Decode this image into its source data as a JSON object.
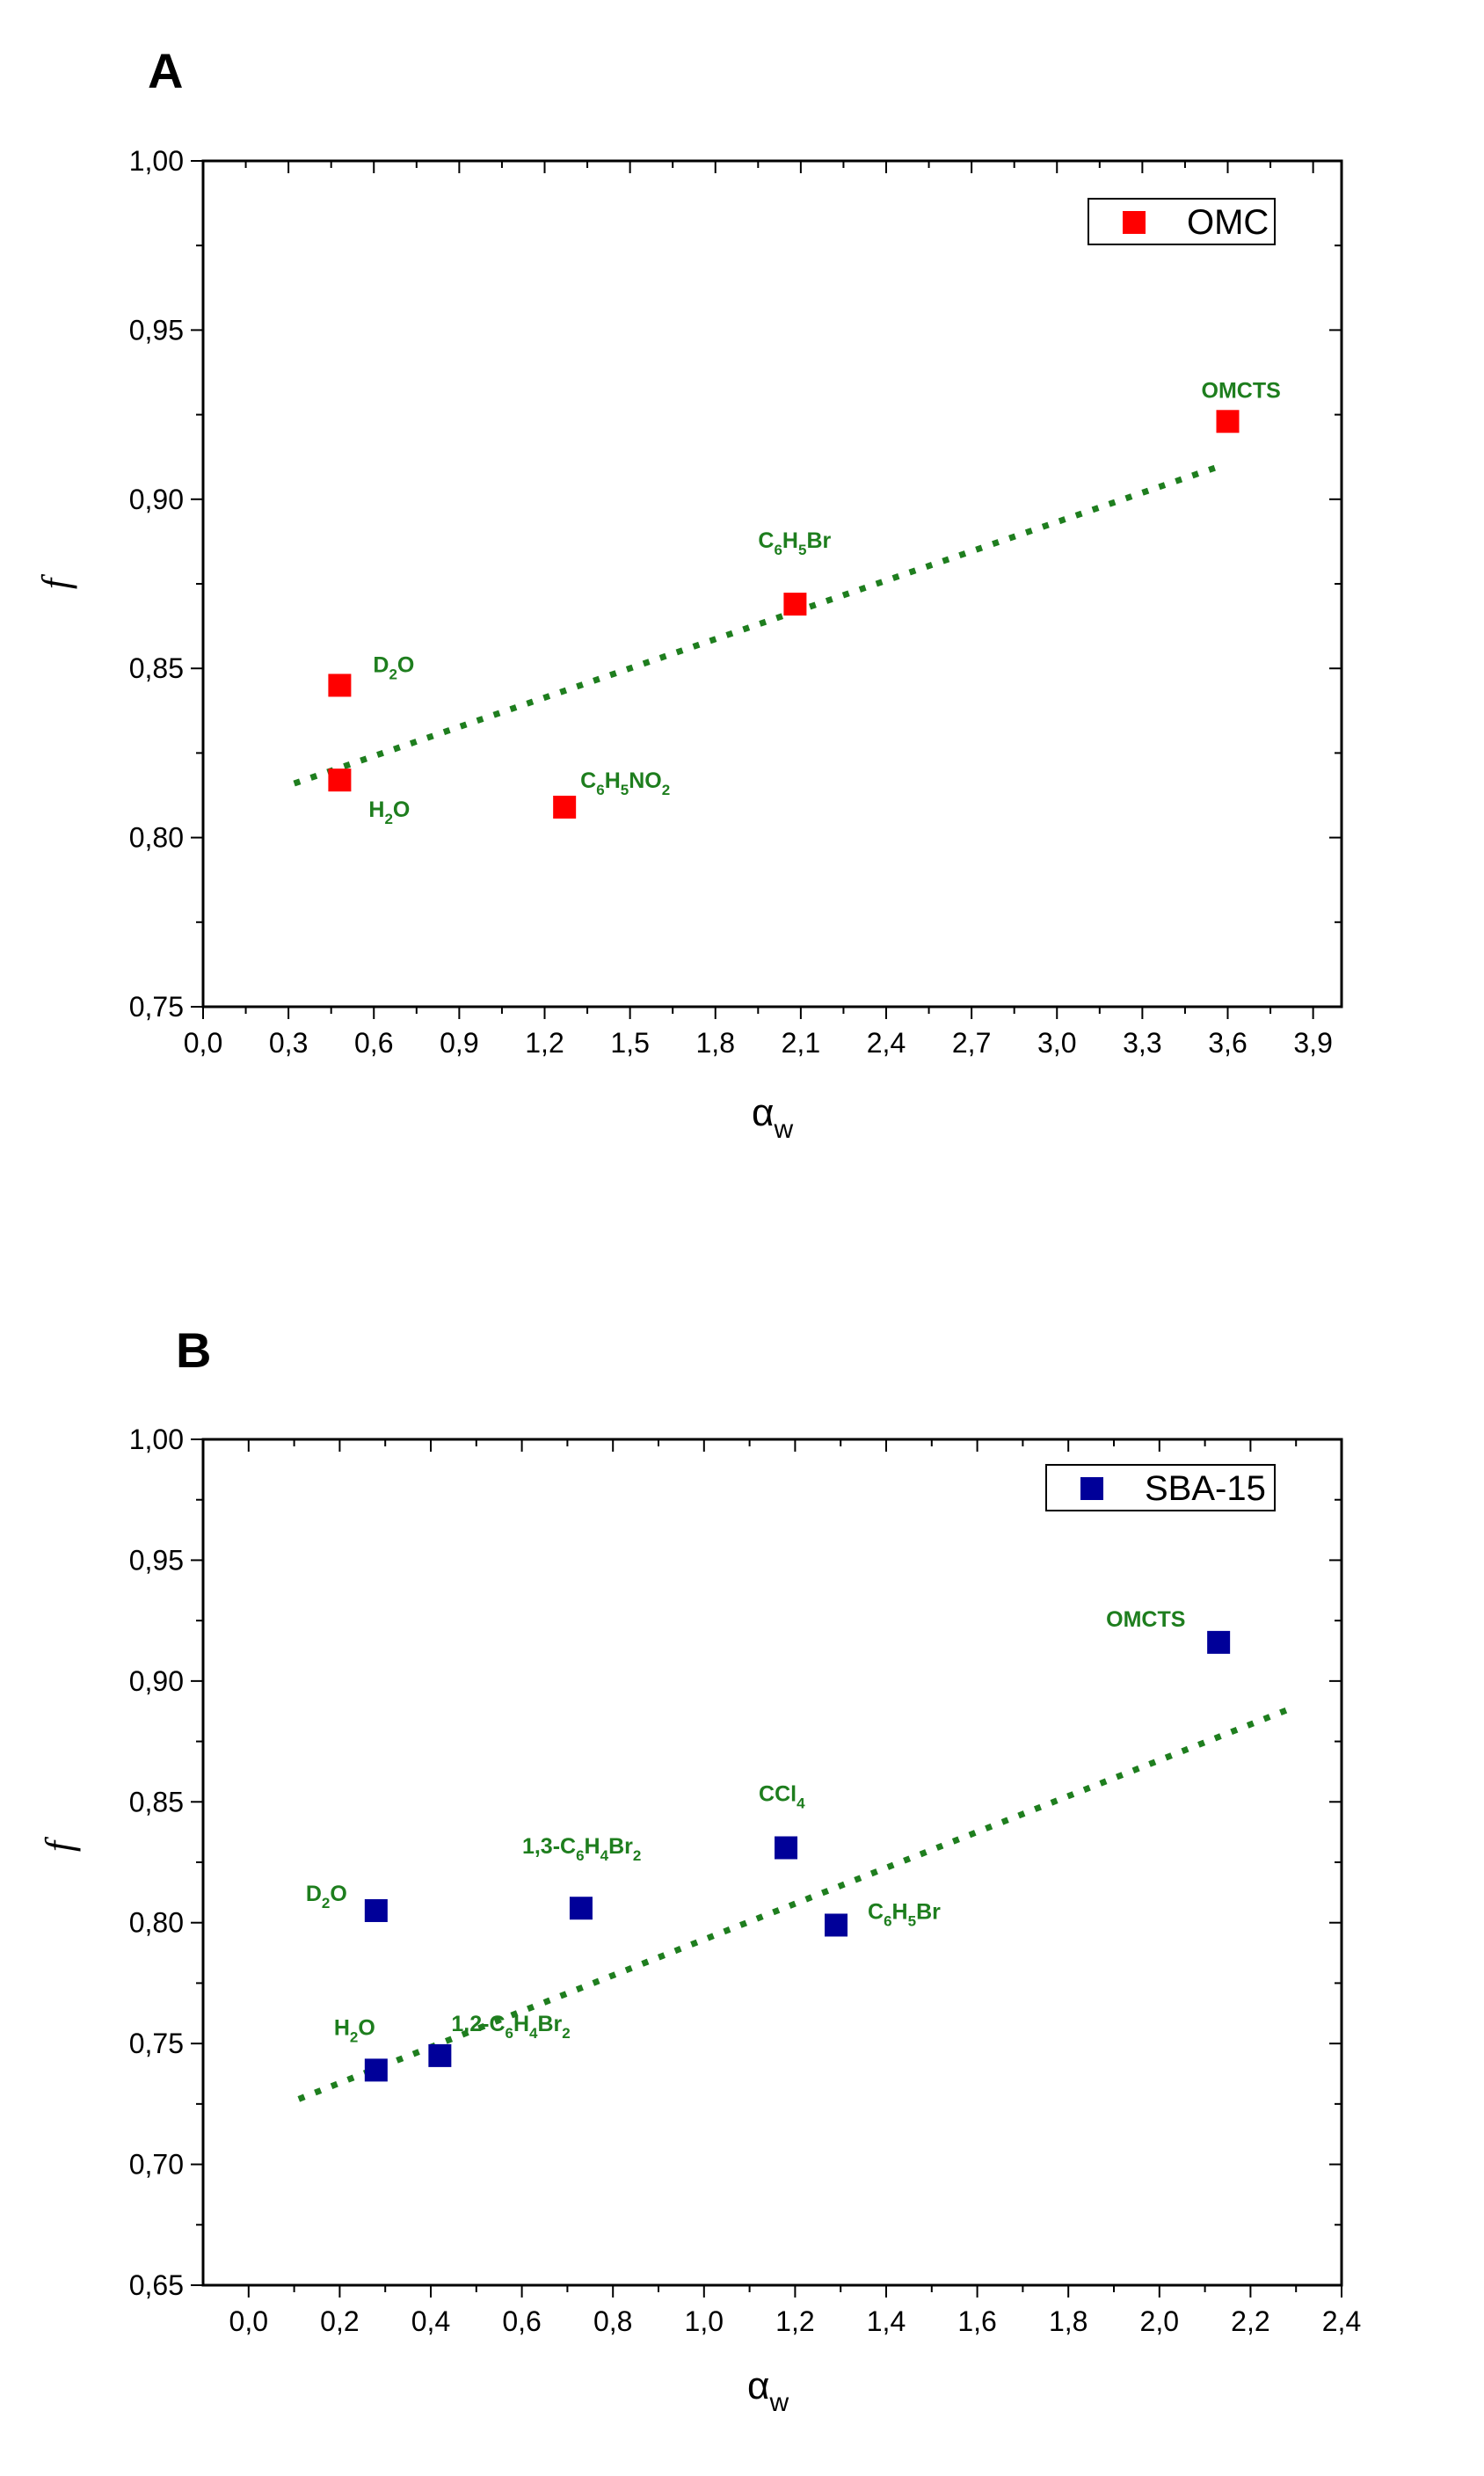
{
  "chart_data": [
    {
      "panel": "A",
      "type": "scatter",
      "xlabel": "α",
      "xlabel_sub": "w",
      "ylabel": "f",
      "xlim": [
        0.0,
        4.0
      ],
      "ylim": [
        0.75,
        1.0
      ],
      "xticks": [
        0.0,
        0.3,
        0.6,
        0.9,
        1.2,
        1.5,
        1.8,
        2.1,
        2.4,
        2.7,
        3.0,
        3.3,
        3.6,
        3.9
      ],
      "xtick_labels": [
        "0,0",
        "0,3",
        "0,6",
        "0,9",
        "1,2",
        "1,5",
        "1,8",
        "2,1",
        "2,4",
        "2,7",
        "3,0",
        "3,3",
        "3,6",
        "3,9"
      ],
      "yticks": [
        0.75,
        0.8,
        0.85,
        0.9,
        0.95,
        1.0
      ],
      "ytick_labels": [
        "0,75",
        "0,80",
        "0,85",
        "0,90",
        "0,95",
        "1,00"
      ],
      "series": [
        {
          "name": "OMC",
          "color": "#ff0000",
          "marker": "square",
          "points": [
            {
              "x": 0.48,
              "y": 0.845,
              "label": [
                "D",
                "2",
                "O"
              ]
            },
            {
              "x": 0.48,
              "y": 0.817,
              "label": [
                "H",
                "2",
                "O"
              ]
            },
            {
              "x": 1.27,
              "y": 0.809,
              "label": [
                "C",
                "6",
                "H",
                "5",
                "NO",
                "2"
              ]
            },
            {
              "x": 2.08,
              "y": 0.869,
              "label": [
                "C",
                "6",
                "H",
                "5",
                "Br"
              ]
            },
            {
              "x": 3.6,
              "y": 0.923,
              "label": [
                "OMCTS"
              ]
            }
          ]
        }
      ],
      "fit_line": {
        "x": [
          0.32,
          3.58
        ],
        "y": [
          0.816,
          0.91
        ],
        "color": "#1e7e1e",
        "style": "dotted"
      },
      "legend_position": "top-right"
    },
    {
      "panel": "B",
      "type": "scatter",
      "xlabel": "α",
      "xlabel_sub": "w",
      "ylabel": "f",
      "xlim": [
        -0.1,
        2.4
      ],
      "ylim": [
        0.65,
        1.0
      ],
      "xticks": [
        0.0,
        0.2,
        0.4,
        0.6,
        0.8,
        1.0,
        1.2,
        1.4,
        1.6,
        1.8,
        2.0,
        2.2,
        2.4
      ],
      "xtick_labels": [
        "0,0",
        "0,2",
        "0,4",
        "0,6",
        "0,8",
        "1,0",
        "1,2",
        "1,4",
        "1,6",
        "1,8",
        "2,0",
        "2,2",
        "2,4"
      ],
      "yticks": [
        0.65,
        0.7,
        0.75,
        0.8,
        0.85,
        0.9,
        0.95,
        1.0
      ],
      "ytick_labels": [
        "0,65",
        "0,70",
        "0,75",
        "0,80",
        "0,85",
        "0,90",
        "0,95",
        "1,00"
      ],
      "series": [
        {
          "name": "SBA-15",
          "color": "#000099",
          "marker": "square",
          "points": [
            {
              "x": 0.28,
              "y": 0.805,
              "label": [
                "D",
                "2",
                "O"
              ]
            },
            {
              "x": 0.28,
              "y": 0.739,
              "label": [
                "H",
                "2",
                "O"
              ]
            },
            {
              "x": 0.42,
              "y": 0.745,
              "label": [
                "1,2-C",
                "6",
                "H",
                "4",
                "Br",
                "2"
              ]
            },
            {
              "x": 0.73,
              "y": 0.806,
              "label": [
                "1,3-C",
                "6",
                "H",
                "4",
                "Br",
                "2"
              ]
            },
            {
              "x": 1.18,
              "y": 0.831,
              "label": [
                "CCl",
                "4"
              ]
            },
            {
              "x": 1.29,
              "y": 0.799,
              "label": [
                "C",
                "6",
                "H",
                "5",
                "Br"
              ]
            },
            {
              "x": 2.13,
              "y": 0.916,
              "label": [
                "OMCTS"
              ]
            }
          ]
        }
      ],
      "fit_line": {
        "x": [
          0.11,
          2.28
        ],
        "y": [
          0.727,
          0.888
        ],
        "color": "#1e7e1e",
        "style": "dotted"
      },
      "legend_position": "top-right"
    }
  ]
}
